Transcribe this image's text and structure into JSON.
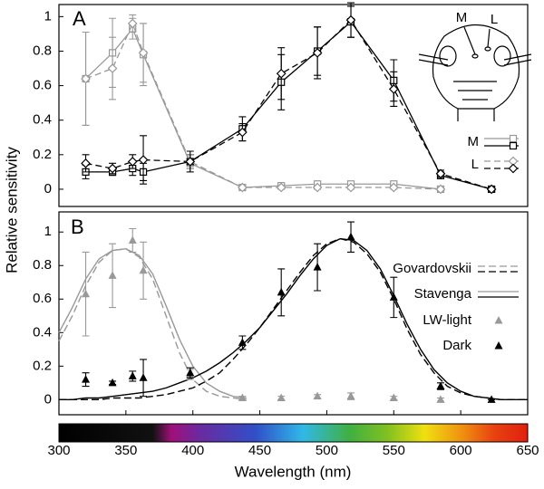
{
  "chart_data": [
    {
      "type": "line",
      "panel_label": "A",
      "ylabel": "Relative sensitivity",
      "inset_labels": [
        "M",
        "L"
      ],
      "x": [
        320,
        340,
        355,
        363,
        398,
        437,
        466,
        493,
        518,
        550,
        585,
        623
      ],
      "xlim": [
        300,
        650
      ],
      "ylim": [
        -0.1,
        1.07
      ],
      "yticks": [
        0,
        0.2,
        0.4,
        0.6,
        0.8,
        1
      ],
      "groups": [
        {
          "name": "M",
          "marker": "square",
          "dashed": false,
          "series": [
            {
              "color": "#999999",
              "values": [
                0.64,
                0.79,
                0.93,
                0.78,
                0.15,
                0.01,
                0.02,
                0.03,
                0.03,
                0.03,
                0.0,
                null
              ],
              "errors": [
                0.27,
                0.2,
                0.06,
                0.18,
                0.05,
                0.01,
                0.01,
                0.01,
                0.01,
                0.01,
                0.01,
                null
              ]
            },
            {
              "color": "#000000",
              "values": [
                0.1,
                0.1,
                0.12,
                0.1,
                0.16,
                0.35,
                0.62,
                0.8,
                0.97,
                0.63,
                0.08,
                0.0
              ],
              "errors": [
                0.04,
                0.02,
                0.04,
                0.05,
                0.04,
                0.07,
                0.16,
                0.14,
                0.09,
                0.12,
                0.02,
                0.01
              ]
            }
          ]
        },
        {
          "name": "L",
          "marker": "diamond",
          "dashed": true,
          "series": [
            {
              "color": "#999999",
              "values": [
                0.64,
                0.7,
                0.96,
                0.79,
                0.16,
                0.01,
                0.01,
                0.01,
                0.01,
                0.01,
                0.0,
                null
              ],
              "errors": [
                0.27,
                0.18,
                0.05,
                0.17,
                0.04,
                0.01,
                0.01,
                0.01,
                0.01,
                0.01,
                0.01,
                null
              ]
            },
            {
              "color": "#000000",
              "values": [
                0.15,
                0.12,
                0.16,
                0.17,
                0.16,
                0.33,
                0.67,
                0.79,
                0.98,
                0.58,
                0.09,
                0.0
              ],
              "errors": [
                0.05,
                0.03,
                0.04,
                0.14,
                0.06,
                0.05,
                0.15,
                0.15,
                0.1,
                0.1,
                0.02,
                0.01
              ]
            }
          ]
        }
      ]
    },
    {
      "type": "line",
      "panel_label": "B",
      "xlabel": "Wavelength (nm)",
      "xlim": [
        300,
        650
      ],
      "xticks": [
        300,
        350,
        400,
        450,
        500,
        550,
        600,
        650
      ],
      "ylim": [
        -0.09,
        1.12
      ],
      "yticks": [
        0,
        0.2,
        0.4,
        0.6,
        0.8,
        1
      ],
      "models": [
        {
          "name": "Govardovskii",
          "dashed": true,
          "curves": [
            {
              "color": "#999999",
              "x": [
                300,
                310,
                320,
                330,
                340,
                350,
                360,
                370,
                380,
                390,
                400,
                410,
                420,
                430,
                440
              ],
              "values": [
                0.35,
                0.5,
                0.68,
                0.82,
                0.89,
                0.9,
                0.85,
                0.72,
                0.5,
                0.28,
                0.12,
                0.05,
                0.02,
                0.01,
                0.0
              ]
            },
            {
              "color": "#000000",
              "x": [
                300,
                310,
                320,
                330,
                340,
                350,
                360,
                370,
                380,
                390,
                400,
                410,
                420,
                430,
                440,
                450,
                460,
                470,
                480,
                490,
                500,
                510,
                520,
                530,
                540,
                550,
                560,
                570,
                580,
                590,
                600,
                610,
                620,
                630,
                640,
                650
              ],
              "values": [
                0,
                0,
                0,
                0,
                0.01,
                0.01,
                0.01,
                0.02,
                0.03,
                0.05,
                0.07,
                0.11,
                0.16,
                0.24,
                0.33,
                0.43,
                0.54,
                0.65,
                0.76,
                0.86,
                0.93,
                0.96,
                0.94,
                0.87,
                0.76,
                0.6,
                0.42,
                0.27,
                0.16,
                0.08,
                0.04,
                0.02,
                0.01,
                0,
                0,
                0
              ]
            }
          ]
        },
        {
          "name": "Stavenga",
          "dashed": false,
          "curves": [
            {
              "color": "#999999",
              "x": [
                300,
                310,
                320,
                330,
                340,
                350,
                360,
                370,
                380,
                390,
                400,
                410,
                420,
                430,
                440
              ],
              "values": [
                0.4,
                0.55,
                0.72,
                0.84,
                0.89,
                0.9,
                0.86,
                0.75,
                0.56,
                0.36,
                0.2,
                0.1,
                0.05,
                0.02,
                0.01
              ]
            },
            {
              "color": "#000000",
              "x": [
                300,
                310,
                320,
                330,
                340,
                350,
                360,
                370,
                380,
                390,
                400,
                410,
                420,
                430,
                440,
                450,
                460,
                470,
                480,
                490,
                500,
                510,
                520,
                530,
                540,
                550,
                560,
                570,
                580,
                590,
                600,
                610,
                620,
                630,
                640,
                650
              ],
              "values": [
                0,
                0,
                0.01,
                0.01,
                0.02,
                0.03,
                0.04,
                0.05,
                0.07,
                0.1,
                0.13,
                0.17,
                0.22,
                0.28,
                0.35,
                0.43,
                0.53,
                0.63,
                0.74,
                0.84,
                0.92,
                0.96,
                0.95,
                0.89,
                0.78,
                0.62,
                0.45,
                0.3,
                0.18,
                0.1,
                0.05,
                0.02,
                0.01,
                0,
                0,
                0
              ]
            }
          ]
        }
      ],
      "x": [
        320,
        340,
        355,
        363,
        398,
        437,
        466,
        493,
        518,
        550,
        585,
        623
      ],
      "series": [
        {
          "name": "LW-light",
          "color": "#999999",
          "marker": "triangle",
          "values": [
            0.63,
            0.74,
            0.95,
            0.77,
            0.15,
            0.01,
            0.01,
            0.02,
            0.02,
            0.01,
            0.0,
            null
          ],
          "errors": [
            0.25,
            0.19,
            0.07,
            0.17,
            0.03,
            0.01,
            0.01,
            0.01,
            0.02,
            0.01,
            0.01,
            null
          ]
        },
        {
          "name": "Dark",
          "color": "#000000",
          "marker": "triangle",
          "values": [
            0.12,
            0.1,
            0.14,
            0.13,
            0.16,
            0.34,
            0.64,
            0.79,
            0.97,
            0.61,
            0.08,
            0.0
          ],
          "errors": [
            0.04,
            0.01,
            0.03,
            0.11,
            0.03,
            0.04,
            0.14,
            0.14,
            0.09,
            0.12,
            0.02,
            0.0
          ]
        }
      ]
    }
  ]
}
